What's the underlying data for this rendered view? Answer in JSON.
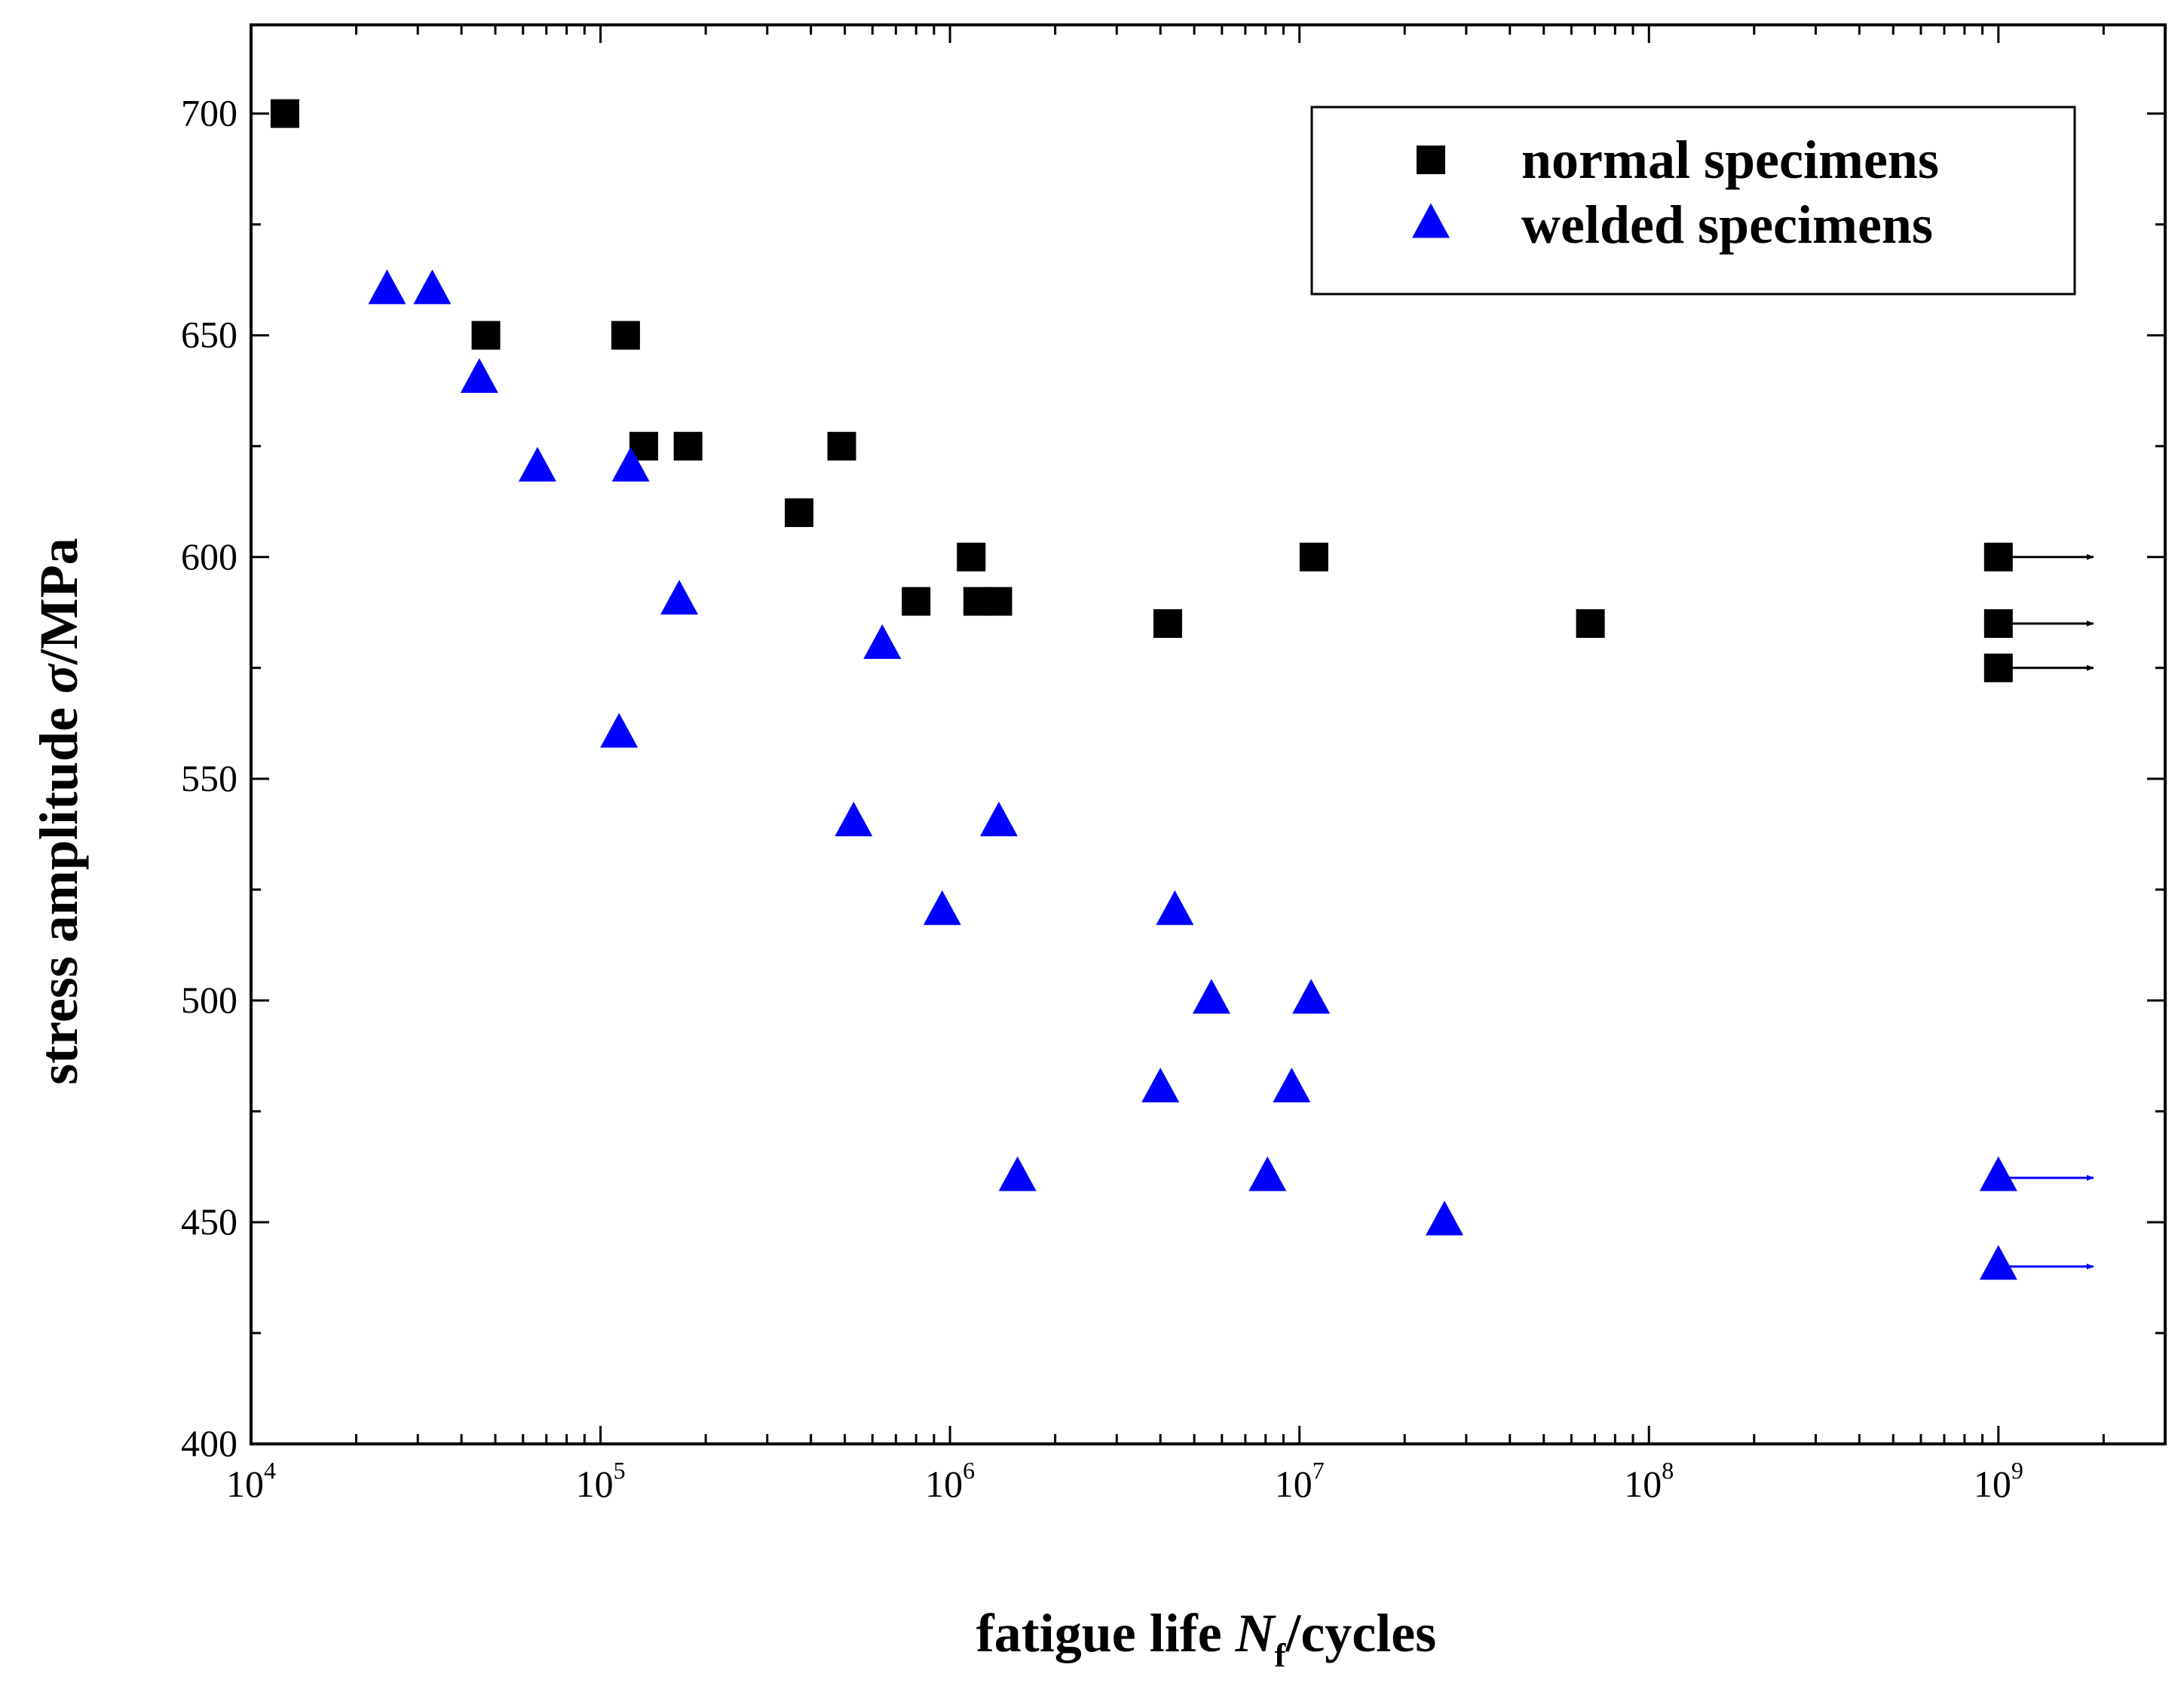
{
  "chart_data": {
    "type": "scatter",
    "title": "",
    "xlabel": {
      "prefix": "fatigue life ",
      "symbol": "N",
      "subscript": "f",
      "suffix": "/cycles"
    },
    "ylabel": {
      "prefix": "stress amplitude ",
      "symbol": "σ",
      "suffix": "/MPa"
    },
    "x_scale": "log",
    "xlim": [
      10000,
      3000000000
    ],
    "ylim": [
      400,
      720
    ],
    "x_ticks": [
      {
        "base": "10",
        "exp": "4",
        "value": 10000
      },
      {
        "base": "10",
        "exp": "5",
        "value": 100000
      },
      {
        "base": "10",
        "exp": "6",
        "value": 1000000
      },
      {
        "base": "10",
        "exp": "7",
        "value": 10000000
      },
      {
        "base": "10",
        "exp": "8",
        "value": 100000000
      },
      {
        "base": "10",
        "exp": "9",
        "value": 1000000000
      }
    ],
    "y_ticks": [
      "400",
      "450",
      "500",
      "550",
      "600",
      "650",
      "700"
    ],
    "grid": false,
    "legend_position": "top-right",
    "series": [
      {
        "name": "normal specimens",
        "marker": "square",
        "color": "#000000",
        "points": [
          {
            "x": 12500,
            "y": 700
          },
          {
            "x": 47000,
            "y": 650
          },
          {
            "x": 118000,
            "y": 650
          },
          {
            "x": 133000,
            "y": 625
          },
          {
            "x": 178000,
            "y": 625
          },
          {
            "x": 490000,
            "y": 625
          },
          {
            "x": 370000,
            "y": 610
          },
          {
            "x": 1150000,
            "y": 600
          },
          {
            "x": 11000000,
            "y": 600
          },
          {
            "x": 800000,
            "y": 590
          },
          {
            "x": 1200000,
            "y": 590
          },
          {
            "x": 1370000,
            "y": 590
          },
          {
            "x": 4200000,
            "y": 585
          },
          {
            "x": 68000000,
            "y": 585
          },
          {
            "x": 1000000000,
            "y": 600,
            "runout": true
          },
          {
            "x": 1000000000,
            "y": 585,
            "runout": true
          },
          {
            "x": 1000000000,
            "y": 575,
            "runout": true
          }
        ]
      },
      {
        "name": "welded specimens",
        "marker": "triangle",
        "color": "#0000ff",
        "points": [
          {
            "x": 24500,
            "y": 660
          },
          {
            "x": 33000,
            "y": 660
          },
          {
            "x": 45000,
            "y": 640
          },
          {
            "x": 66000,
            "y": 620
          },
          {
            "x": 122000,
            "y": 620
          },
          {
            "x": 168000,
            "y": 590
          },
          {
            "x": 113000,
            "y": 560
          },
          {
            "x": 640000,
            "y": 580
          },
          {
            "x": 530000,
            "y": 540
          },
          {
            "x": 1380000,
            "y": 540
          },
          {
            "x": 950000,
            "y": 520
          },
          {
            "x": 4400000,
            "y": 520
          },
          {
            "x": 5600000,
            "y": 500
          },
          {
            "x": 10800000,
            "y": 500
          },
          {
            "x": 4000000,
            "y": 480
          },
          {
            "x": 9500000,
            "y": 480
          },
          {
            "x": 1560000,
            "y": 460
          },
          {
            "x": 8100000,
            "y": 460
          },
          {
            "x": 26000000,
            "y": 450
          },
          {
            "x": 1000000000,
            "y": 460,
            "runout": true
          },
          {
            "x": 1000000000,
            "y": 440,
            "runout": true
          }
        ]
      }
    ]
  }
}
